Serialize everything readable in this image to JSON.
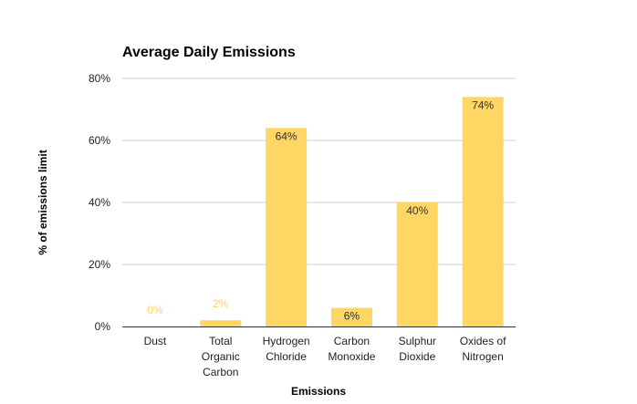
{
  "chart_data": {
    "type": "bar",
    "title": "Average Daily Emissions",
    "xlabel": "Emissions",
    "ylabel": "% of emissions limit",
    "ylim": [
      0,
      80
    ],
    "yticks": [
      "0%",
      "20%",
      "40%",
      "60%",
      "80%"
    ],
    "categories": [
      [
        "Dust"
      ],
      [
        "Total",
        "Organic",
        "Carbon"
      ],
      [
        "Hydrogen",
        "Chloride"
      ],
      [
        "Carbon",
        "Monoxide"
      ],
      [
        "Sulphur",
        "Dioxide"
      ],
      [
        "Oxides of",
        "Nitrogen"
      ]
    ],
    "values": [
      0,
      2,
      64,
      6,
      40,
      74
    ],
    "labels": [
      "0%",
      "2%",
      "64%",
      "6%",
      "40%",
      "74%"
    ],
    "bar_color": "#fdd663",
    "grid": true,
    "legend": "none"
  }
}
